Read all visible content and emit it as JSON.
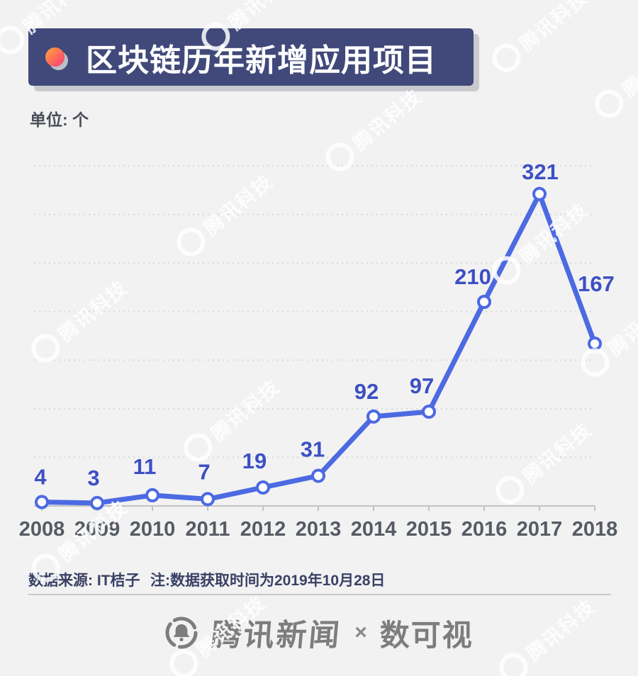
{
  "header": {
    "title": "区块链历年新增应用项目",
    "unit_label": "单位: 个"
  },
  "chart_data": {
    "type": "line",
    "title": "区块链历年新增应用项目",
    "unit": "个",
    "categories": [
      "2008",
      "2009",
      "2010",
      "2011",
      "2012",
      "2013",
      "2014",
      "2015",
      "2016",
      "2017",
      "2018"
    ],
    "values": [
      4,
      3,
      11,
      7,
      19,
      31,
      92,
      97,
      210,
      321,
      167
    ],
    "xlabel": "",
    "ylabel": "",
    "ylim": [
      0,
      350
    ],
    "grid_step": 50,
    "grid": "dotted-horizontal",
    "legend": "none",
    "line_color": "#4c6ae2",
    "point_style": "open-circle",
    "point_fill": "#fdfdfe",
    "value_label_color": "#3d50c3",
    "axis_color": "#c2c3c6",
    "tick_label_color": "#565b64"
  },
  "footer": {
    "source": "数据来源: IT桔子",
    "note": "注:数据获取时间为2019年10月28日"
  },
  "branding": {
    "news_label": "腾讯新闻",
    "separator": "×",
    "partner_label": "数可视"
  },
  "watermark": {
    "text": "腾讯科技"
  },
  "colors": {
    "background": "#f2f2f3",
    "banner": "#40497a",
    "banner_shadow": "#c9cacd",
    "bullet_gradient_start": "#ff9640",
    "bullet_gradient_end": "#ff4d6e",
    "line": "#4c6ae2",
    "value_label": "#3d50c3",
    "footer_text": "#3a4164",
    "brand_gray": "#7d7d7d"
  }
}
